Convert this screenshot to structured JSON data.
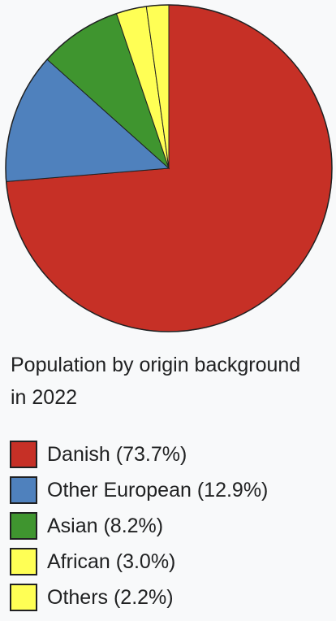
{
  "chart_data": {
    "type": "pie",
    "title": "Population by origin background in 2022",
    "slices": [
      {
        "label": "Danish (73.7%)",
        "value": 73.7,
        "color": "#c63026"
      },
      {
        "label": "Other European (12.9%)",
        "value": 12.9,
        "color": "#4f81bd"
      },
      {
        "label": "Asian (8.2%)",
        "value": 8.2,
        "color": "#3f952f"
      },
      {
        "label": "African (3.0%)",
        "value": 3.0,
        "color": "#ffff55"
      },
      {
        "label": "Others (2.2%)",
        "value": 2.2,
        "color": "#ffff55"
      }
    ],
    "legend_position": "bottom"
  }
}
